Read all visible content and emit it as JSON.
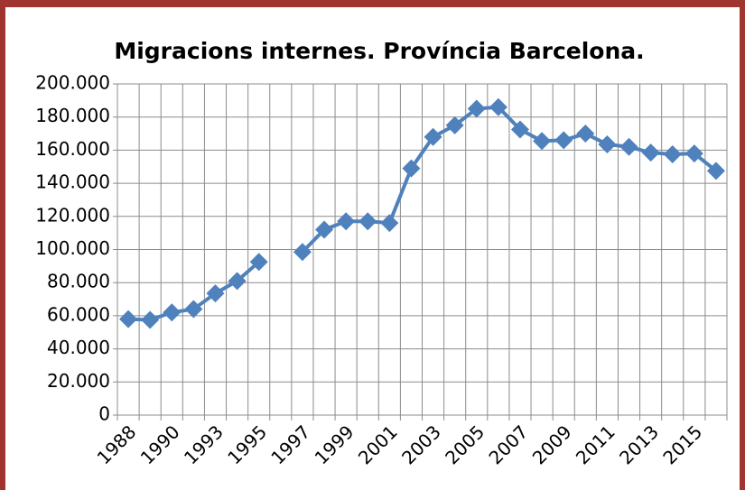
{
  "chart_data": {
    "type": "line",
    "title": "Migracions internes. Província Barcelona.",
    "categories": [
      "1988",
      null,
      "1990",
      null,
      "1993",
      null,
      "1995",
      null,
      "1997",
      null,
      "1999",
      null,
      "2001",
      null,
      "2003",
      null,
      "2005",
      null,
      "2007",
      null,
      "2009",
      null,
      "2011",
      null,
      "2013",
      null,
      "2015",
      null
    ],
    "series": [
      {
        "color": "#4f81bd",
        "values": [
          58000,
          57500,
          62000,
          64000,
          73500,
          81000,
          92500,
          null,
          98500,
          112000,
          117000,
          117000,
          116000,
          149000,
          168000,
          175000,
          185000,
          186000,
          172500,
          165500,
          166000,
          170000,
          163500,
          162000,
          158500,
          157500,
          158000,
          147500
        ]
      }
    ],
    "ylim": [
      0,
      200000
    ],
    "yticks": [
      0,
      {
        "value": 20000,
        "label": "20.000"
      },
      {
        "value": 40000,
        "label": "40.000"
      },
      {
        "value": 60000,
        "label": "60.000"
      },
      {
        "value": 80000,
        "label": "80.000"
      },
      {
        "value": 100000,
        "label": "100.000"
      },
      {
        "value": 120000,
        "label": "120.000"
      },
      {
        "value": 140000,
        "label": "140.000"
      },
      {
        "value": 160000,
        "label": "160.000"
      },
      {
        "value": 180000,
        "label": "180.000"
      },
      {
        "value": 200000,
        "label": "200.000"
      }
    ],
    "grid": true
  }
}
